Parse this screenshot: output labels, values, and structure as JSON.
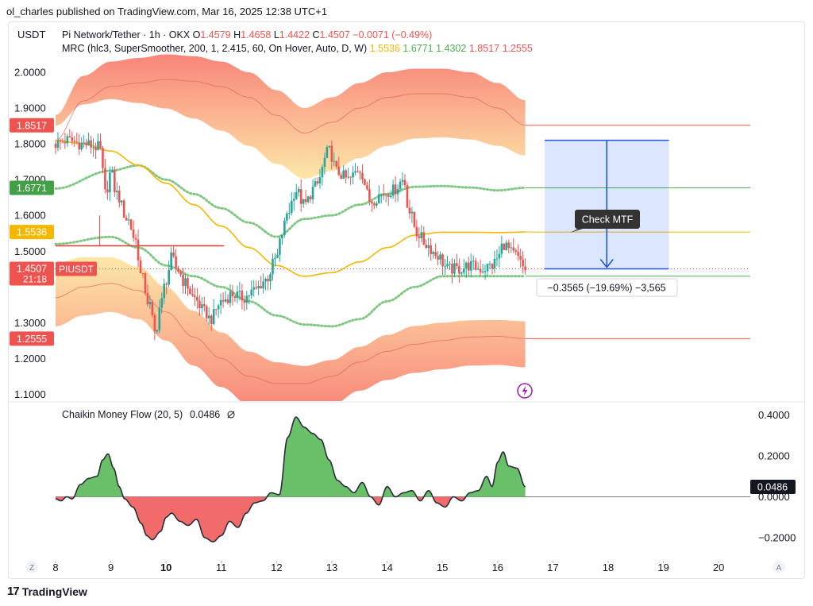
{
  "publisher_line": "ol_charles published on TradingView.com, Mar 16, 2025 12:38 UTC+1",
  "brand": "TradingView",
  "brand_logo": "17",
  "currency": "USDT",
  "legend": {
    "symbol": "Pi Network/Tether · 1h · OKX",
    "o_label": "O",
    "o": "1.4579",
    "h_label": "H",
    "h": "1.4658",
    "l_label": "L",
    "l": "1.4422",
    "c_label": "C",
    "c": "1.4507",
    "change": "−0.0071 (−0.49%)",
    "indicator": "MRC (hlc3, SuperSmoother, 200, 1, 2.415, 60, On Hover, Auto, D, W)",
    "ind_values": [
      {
        "text": "1.5536",
        "color": "#f5b700"
      },
      {
        "text": "1.6771",
        "color": "#4caf50"
      },
      {
        "text": "1.4302",
        "color": "#4caf50"
      },
      {
        "text": "1.8517",
        "color": "#ef5350"
      },
      {
        "text": "1.2555",
        "color": "#ef5350"
      }
    ]
  },
  "price_axis": {
    "ticks": [
      "2.0000",
      "1.9000",
      "1.8000",
      "1.7000",
      "1.6000",
      "1.5000",
      "1.3000",
      "1.2000",
      "1.1000"
    ],
    "tick_values": [
      2.0,
      1.9,
      1.8,
      1.7,
      1.6,
      1.5,
      1.3,
      1.2,
      1.1
    ]
  },
  "level_badges": [
    {
      "text": "1.8517",
      "value": 1.8517,
      "bg": "#ef5350"
    },
    {
      "text": "1.6771",
      "value": 1.6771,
      "bg": "#43a047"
    },
    {
      "text": "1.5536",
      "value": 1.5536,
      "bg": "#f5b700"
    },
    {
      "text": "1.4302",
      "value": 1.4302,
      "bg": "#43a047"
    },
    {
      "text": "1.2555",
      "value": 1.2555,
      "bg": "#ef5350"
    }
  ],
  "last_price_badge": {
    "price": "1.4507",
    "countdown": "21:18",
    "symbol": "PIUSDT",
    "bg": "#ef5350"
  },
  "measure": {
    "label": "Check MTF",
    "result": "−0.3565 (−19.69%) −3,565",
    "from": 1.81,
    "to": 1.4507
  },
  "cmf": {
    "title": "Chaikin Money Flow (20, 5)",
    "value": "0.0486",
    "value_num": 0.0486,
    "ticks": [
      "0.4000",
      "0.2000",
      "0.0000",
      "−0.2000"
    ],
    "tick_values": [
      0.4,
      0.2,
      0.0,
      -0.2
    ]
  },
  "x_axis": {
    "labels": [
      "8",
      "9",
      "10",
      "11",
      "12",
      "13",
      "14",
      "15",
      "16",
      "17",
      "18",
      "19",
      "20"
    ],
    "bold": [
      "10"
    ]
  },
  "corner_left": "Z",
  "corner_right": "A",
  "chart_data": {
    "type": "candlestick",
    "title": "Pi Network/Tether · 1h · OKX",
    "xlabel": "",
    "ylabel": "USDT",
    "ylim": [
      1.08,
      2.08
    ],
    "x_ticks": [
      8,
      9,
      10,
      11,
      12,
      13,
      14,
      15,
      16,
      17,
      18,
      19,
      20
    ],
    "price_path": [
      [
        8.0,
        1.8
      ],
      [
        8.2,
        1.81
      ],
      [
        8.5,
        1.8
      ],
      [
        8.8,
        1.79
      ],
      [
        8.85,
        1.72
      ],
      [
        8.9,
        1.66
      ],
      [
        9.0,
        1.72
      ],
      [
        9.1,
        1.66
      ],
      [
        9.3,
        1.59
      ],
      [
        9.45,
        1.53
      ],
      [
        9.55,
        1.43
      ],
      [
        9.7,
        1.35
      ],
      [
        9.8,
        1.27
      ],
      [
        9.9,
        1.35
      ],
      [
        10.0,
        1.42
      ],
      [
        10.1,
        1.48
      ],
      [
        10.2,
        1.45
      ],
      [
        10.35,
        1.41
      ],
      [
        10.5,
        1.37
      ],
      [
        10.7,
        1.33
      ],
      [
        10.8,
        1.31
      ],
      [
        11.0,
        1.36
      ],
      [
        11.2,
        1.38
      ],
      [
        11.4,
        1.37
      ],
      [
        11.6,
        1.39
      ],
      [
        11.8,
        1.42
      ],
      [
        12.0,
        1.48
      ],
      [
        12.1,
        1.55
      ],
      [
        12.2,
        1.61
      ],
      [
        12.35,
        1.67
      ],
      [
        12.5,
        1.63
      ],
      [
        12.7,
        1.68
      ],
      [
        12.95,
        1.78
      ],
      [
        13.1,
        1.72
      ],
      [
        13.3,
        1.7
      ],
      [
        13.5,
        1.73
      ],
      [
        13.7,
        1.64
      ],
      [
        13.9,
        1.66
      ],
      [
        14.1,
        1.67
      ],
      [
        14.3,
        1.7
      ],
      [
        14.4,
        1.61
      ],
      [
        14.55,
        1.55
      ],
      [
        14.7,
        1.52
      ],
      [
        14.9,
        1.49
      ],
      [
        15.1,
        1.45
      ],
      [
        15.3,
        1.45
      ],
      [
        15.5,
        1.46
      ],
      [
        15.7,
        1.45
      ],
      [
        15.9,
        1.46
      ],
      [
        16.0,
        1.48
      ],
      [
        16.1,
        1.52
      ],
      [
        16.3,
        1.49
      ],
      [
        16.5,
        1.4507
      ]
    ],
    "series": [
      {
        "name": "MRC",
        "values": [
          [
            8,
            1.81
          ],
          [
            8.5,
            1.8
          ],
          [
            9,
            1.78
          ],
          [
            9.5,
            1.74
          ],
          [
            10,
            1.69
          ],
          [
            10.5,
            1.63
          ],
          [
            11,
            1.57
          ],
          [
            11.5,
            1.51
          ],
          [
            12,
            1.46
          ],
          [
            12.5,
            1.43
          ],
          [
            13,
            1.44
          ],
          [
            13.5,
            1.47
          ],
          [
            14,
            1.51
          ],
          [
            14.5,
            1.545
          ],
          [
            15,
            1.553
          ],
          [
            15.5,
            1.553
          ],
          [
            16,
            1.552
          ],
          [
            16.5,
            1.5536
          ]
        ]
      },
      {
        "name": "Upper 1",
        "values": [
          [
            8,
            1.675
          ],
          [
            9,
            1.725
          ],
          [
            9.5,
            1.74
          ],
          [
            10,
            1.7
          ],
          [
            10.5,
            1.66
          ],
          [
            11,
            1.62
          ],
          [
            11.5,
            1.58
          ],
          [
            12,
            1.54
          ],
          [
            12.5,
            1.59
          ],
          [
            13,
            1.6
          ],
          [
            13.5,
            1.63
          ],
          [
            14,
            1.66
          ],
          [
            14.5,
            1.68
          ],
          [
            15,
            1.682
          ],
          [
            15.5,
            1.678
          ],
          [
            16,
            1.67
          ],
          [
            16.5,
            1.6771
          ]
        ]
      },
      {
        "name": "Lower 1",
        "values": [
          [
            8,
            1.52
          ],
          [
            9,
            1.54
          ],
          [
            9.5,
            1.51
          ],
          [
            10,
            1.46
          ],
          [
            10.5,
            1.43
          ],
          [
            11,
            1.4
          ],
          [
            11.5,
            1.36
          ],
          [
            12,
            1.32
          ],
          [
            12.5,
            1.295
          ],
          [
            13,
            1.29
          ],
          [
            13.5,
            1.31
          ],
          [
            14,
            1.36
          ],
          [
            14.5,
            1.4
          ],
          [
            15,
            1.43
          ],
          [
            15.5,
            1.43
          ],
          [
            16,
            1.43
          ],
          [
            16.5,
            1.4302
          ]
        ]
      },
      {
        "name": "Upper 2",
        "values": [
          [
            8,
            1.81
          ],
          [
            8.5,
            1.92
          ],
          [
            9,
            1.96
          ],
          [
            9.5,
            1.97
          ],
          [
            10,
            1.98
          ],
          [
            10.5,
            1.975
          ],
          [
            11,
            1.96
          ],
          [
            11.5,
            1.93
          ],
          [
            12,
            1.88
          ],
          [
            12.5,
            1.83
          ],
          [
            13,
            1.86
          ],
          [
            13.5,
            1.9
          ],
          [
            14,
            1.93
          ],
          [
            14.5,
            1.94
          ],
          [
            15,
            1.94
          ],
          [
            15.5,
            1.93
          ],
          [
            16,
            1.9
          ],
          [
            16.5,
            1.8517
          ]
        ]
      },
      {
        "name": "Lower 2",
        "values": [
          [
            8,
            1.37
          ],
          [
            8.5,
            1.4
          ],
          [
            9,
            1.41
          ],
          [
            9.5,
            1.39
          ],
          [
            10,
            1.33
          ],
          [
            10.5,
            1.26
          ],
          [
            11,
            1.2
          ],
          [
            11.5,
            1.15
          ],
          [
            12,
            1.13
          ],
          [
            12.5,
            1.13
          ],
          [
            13,
            1.15
          ],
          [
            13.5,
            1.19
          ],
          [
            14,
            1.22
          ],
          [
            14.5,
            1.24
          ],
          [
            15,
            1.25
          ],
          [
            15.5,
            1.26
          ],
          [
            16,
            1.262
          ],
          [
            16.5,
            1.2555
          ]
        ]
      }
    ],
    "annotations": [
      "Check MTF",
      "−0.3565 (−19.69%) −3,565"
    ],
    "sub_chart": {
      "type": "area",
      "title": "Chaikin Money Flow (20, 5)",
      "ylim": [
        -0.25,
        0.42
      ],
      "values": [
        [
          8.0,
          -0.01
        ],
        [
          8.1,
          -0.02
        ],
        [
          8.2,
          0.0
        ],
        [
          8.3,
          -0.01
        ],
        [
          8.45,
          0.06
        ],
        [
          8.6,
          0.09
        ],
        [
          8.75,
          0.1
        ],
        [
          8.85,
          0.18
        ],
        [
          8.95,
          0.21
        ],
        [
          9.05,
          0.14
        ],
        [
          9.15,
          0.05
        ],
        [
          9.25,
          -0.01
        ],
        [
          9.4,
          -0.05
        ],
        [
          9.55,
          -0.13
        ],
        [
          9.65,
          -0.19
        ],
        [
          9.75,
          -0.21
        ],
        [
          9.9,
          -0.17
        ],
        [
          10.0,
          -0.1
        ],
        [
          10.1,
          -0.08
        ],
        [
          10.25,
          -0.12
        ],
        [
          10.4,
          -0.14
        ],
        [
          10.55,
          -0.11
        ],
        [
          10.7,
          -0.2
        ],
        [
          10.85,
          -0.22
        ],
        [
          11.0,
          -0.19
        ],
        [
          11.15,
          -0.12
        ],
        [
          11.3,
          -0.15
        ],
        [
          11.45,
          -0.08
        ],
        [
          11.6,
          -0.03
        ],
        [
          11.75,
          -0.02
        ],
        [
          11.9,
          0.02
        ],
        [
          12.05,
          0.01
        ],
        [
          12.2,
          0.29
        ],
        [
          12.35,
          0.39
        ],
        [
          12.5,
          0.34
        ],
        [
          12.65,
          0.31
        ],
        [
          12.8,
          0.28
        ],
        [
          12.95,
          0.18
        ],
        [
          13.1,
          0.08
        ],
        [
          13.25,
          0.05
        ],
        [
          13.4,
          0.02
        ],
        [
          13.55,
          0.07
        ],
        [
          13.7,
          0.0
        ],
        [
          13.85,
          -0.04
        ],
        [
          14.0,
          0.05
        ],
        [
          14.15,
          0.0
        ],
        [
          14.3,
          0.02
        ],
        [
          14.45,
          0.03
        ],
        [
          14.6,
          -0.02
        ],
        [
          14.75,
          0.03
        ],
        [
          14.9,
          -0.03
        ],
        [
          15.05,
          -0.05
        ],
        [
          15.2,
          0.0
        ],
        [
          15.35,
          -0.02
        ],
        [
          15.5,
          0.02
        ],
        [
          15.65,
          0.03
        ],
        [
          15.8,
          0.1
        ],
        [
          15.9,
          0.05
        ],
        [
          16.0,
          0.17
        ],
        [
          16.1,
          0.22
        ],
        [
          16.2,
          0.15
        ],
        [
          16.35,
          0.14
        ],
        [
          16.5,
          0.0486
        ]
      ]
    }
  }
}
